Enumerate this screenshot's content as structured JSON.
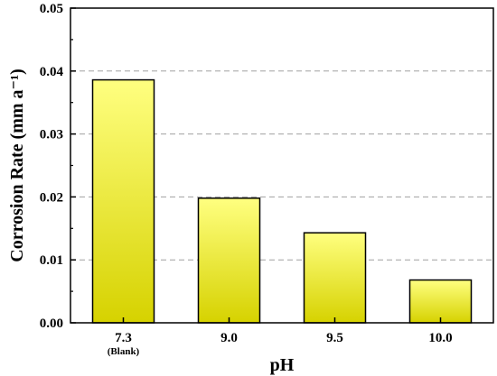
{
  "chart_data": {
    "type": "bar",
    "categories": [
      "7.3",
      "9.0",
      "9.5",
      "10.0"
    ],
    "category_sublabels": [
      "(Blank)",
      "",
      "",
      ""
    ],
    "values": [
      0.0386,
      0.0198,
      0.0143,
      0.0068
    ],
    "title": "",
    "xlabel": "pH",
    "ylabel": "Corrosion Rate (mm a⁻¹)",
    "ylim": [
      0,
      0.05
    ],
    "yticks": [
      "0.00",
      "0.01",
      "0.02",
      "0.03",
      "0.04",
      "0.05"
    ],
    "grid": "horizontal-dashed",
    "legend": "none",
    "colors": {
      "bar_top": "#FFFF80",
      "bar_bottom": "#D6D200",
      "bar_edge": "#000000",
      "grid": "#A0A0A0"
    }
  }
}
